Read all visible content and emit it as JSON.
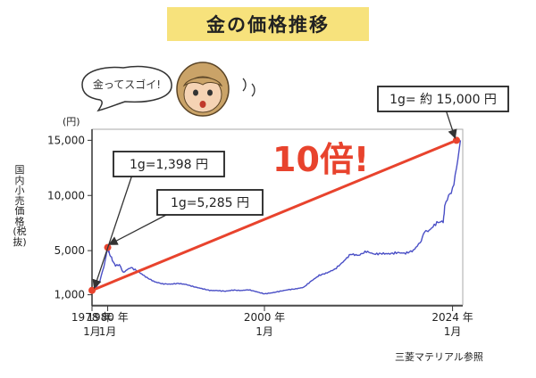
{
  "title": "金の価格推移",
  "speech": "金ってスゴイ!",
  "ylabel": "国内小売価格(税抜)",
  "yunit": "(円)",
  "callout_1978": "1g=1,398 円",
  "callout_1980": "1g=5,285 円",
  "callout_2024": "1g= 約 15,000 円",
  "big_label": "10倍!",
  "source": "三菱マテリアル参照",
  "colors": {
    "line": "#4a4fc6",
    "accent": "#e8432d",
    "title_bg": "#f7e27c"
  },
  "chart_data": {
    "type": "line",
    "title": "金の価格推移",
    "ylabel": "国内小売価格(税抜)",
    "unit": "円",
    "ylim": [
      0,
      16000
    ],
    "xlim": [
      1978.0,
      2025.3
    ],
    "yticks": [
      1000,
      5000,
      10000,
      15000
    ],
    "ytick_labels": [
      "1,000",
      "5,000",
      "10,000",
      "15,000"
    ],
    "xticks": [
      {
        "value": 1978.0,
        "label_top": "1978 年",
        "label_bottom": "1月"
      },
      {
        "value": 1980.0,
        "label_top": "1980 年",
        "label_bottom": "1月"
      },
      {
        "value": 2000.0,
        "label_top": "2000 年",
        "label_bottom": "1月"
      },
      {
        "value": 2024.0,
        "label_top": "2024 年",
        "label_bottom": "1月"
      }
    ],
    "grid": false,
    "series": [
      {
        "x": [
          1978.0,
          1978.5,
          1979.0,
          1979.5,
          1979.8,
          1980.0,
          1980.1,
          1980.3,
          1980.6,
          1981.0,
          1981.5,
          1982.0,
          1982.5,
          1983.0,
          1984.0,
          1985.0,
          1986.0,
          1987.0,
          1988.0,
          1989.0,
          1990.0,
          1991.0,
          1992.0,
          1993.0,
          1994.0,
          1995.0,
          1996.0,
          1997.0,
          1998.0,
          1999.0,
          2000.0,
          2001.0,
          2002.0,
          2003.0,
          2004.0,
          2005.0,
          2006.0,
          2007.0,
          2008.0,
          2009.0,
          2010.0,
          2011.0,
          2012.0,
          2013.0,
          2014.0,
          2015.0,
          2016.0,
          2017.0,
          2018.0,
          2019.0,
          2020.0,
          2020.6,
          2021.0,
          2022.0,
          2022.8,
          2023.0,
          2023.5,
          2024.0,
          2024.5,
          2025.0
        ],
        "values": [
          1398,
          1600,
          2200,
          3500,
          4500,
          5285,
          5000,
          4600,
          4200,
          3600,
          3700,
          3000,
          3300,
          3500,
          3100,
          2600,
          2200,
          2000,
          1950,
          2000,
          1900,
          1700,
          1550,
          1400,
          1400,
          1350,
          1450,
          1400,
          1450,
          1250,
          1050,
          1150,
          1300,
          1450,
          1550,
          1700,
          2300,
          2800,
          3000,
          3300,
          3900,
          4600,
          4500,
          4900,
          4700,
          4800,
          4800,
          4900,
          4800,
          5000,
          5800,
          7000,
          6700,
          7400,
          7700,
          9000,
          9900,
          10500,
          12500,
          15000
        ]
      }
    ],
    "annotations": [
      {
        "x": 1978.0,
        "y": 1398,
        "text": "1g=1,398 円"
      },
      {
        "x": 1980.0,
        "y": 5285,
        "text": "1g=5,285 円"
      },
      {
        "x": 2024.5,
        "y": 15000,
        "text": "1g= 約 15,000 円"
      },
      {
        "text": "10倍!"
      }
    ]
  }
}
